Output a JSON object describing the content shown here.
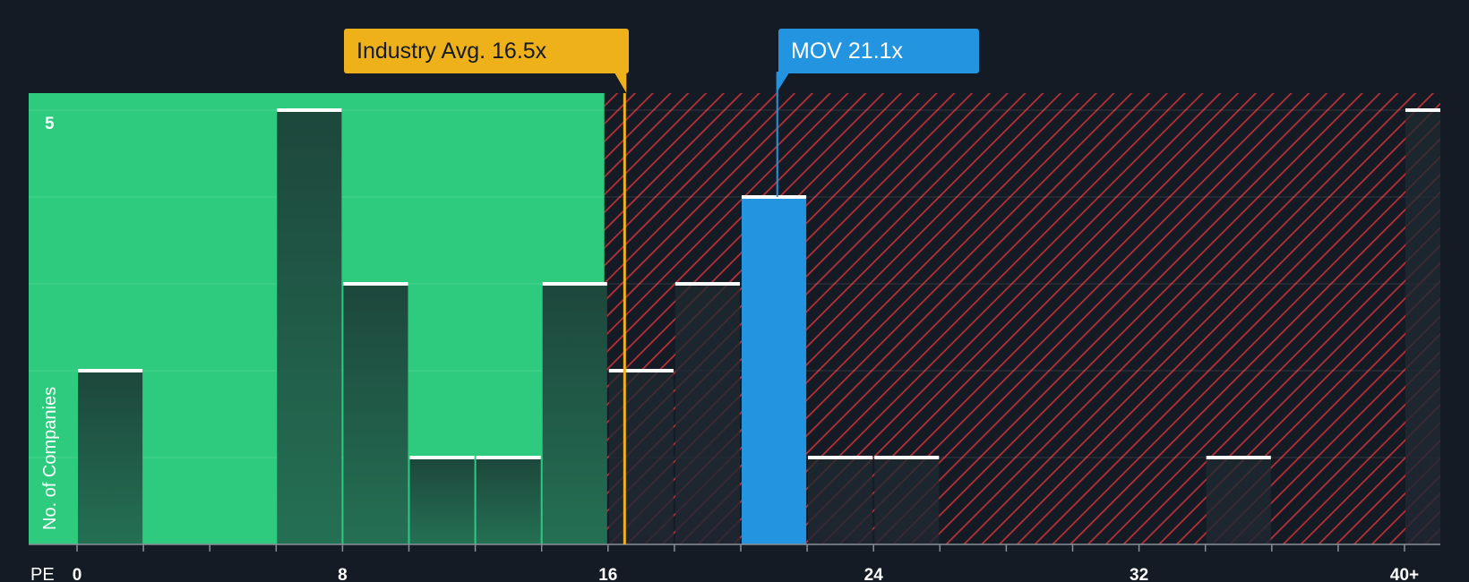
{
  "chart_data": {
    "type": "bar",
    "xlabel": "PE",
    "ylabel": "No. of Companies",
    "x_ticks": [
      0,
      8,
      16,
      24,
      32,
      40
    ],
    "x_tick_labels": [
      "0",
      "8",
      "16",
      "24",
      "32",
      "40+"
    ],
    "y_ticks": [
      5
    ],
    "xlim": [
      -1.4,
      41
    ],
    "ylim": [
      0,
      5.2
    ],
    "bin_width": 2,
    "bars": [
      {
        "x_start": 0,
        "x_end": 2,
        "value": 2
      },
      {
        "x_start": 6,
        "x_end": 8,
        "value": 5
      },
      {
        "x_start": 8,
        "x_end": 10,
        "value": 3
      },
      {
        "x_start": 10,
        "x_end": 12,
        "value": 1
      },
      {
        "x_start": 12,
        "x_end": 14,
        "value": 1
      },
      {
        "x_start": 14,
        "x_end": 16,
        "value": 3
      },
      {
        "x_start": 16,
        "x_end": 18,
        "value": 2
      },
      {
        "x_start": 18,
        "x_end": 20,
        "value": 3
      },
      {
        "x_start": 20,
        "x_end": 22,
        "value": 4,
        "highlight": true
      },
      {
        "x_start": 22,
        "x_end": 24,
        "value": 1
      },
      {
        "x_start": 24,
        "x_end": 26,
        "value": 1
      },
      {
        "x_start": 34,
        "x_end": 36,
        "value": 1
      },
      {
        "x_start": 40,
        "x_end": 42,
        "value": 5
      }
    ],
    "fair_zone_end": 16,
    "industry_avg": {
      "value": 16.5,
      "label": "Industry Avg. 16.5x"
    },
    "company": {
      "name": "MOV",
      "value": 21.1,
      "label": "MOV 21.1x"
    }
  },
  "colors": {
    "background": "#151b24",
    "fair_zone": "#2ecb7e",
    "bar_dark": "#1d4a3e",
    "bar_company": "#2394e0",
    "overvalued_stripe": "#c0333a",
    "industry": "#efb11a"
  }
}
